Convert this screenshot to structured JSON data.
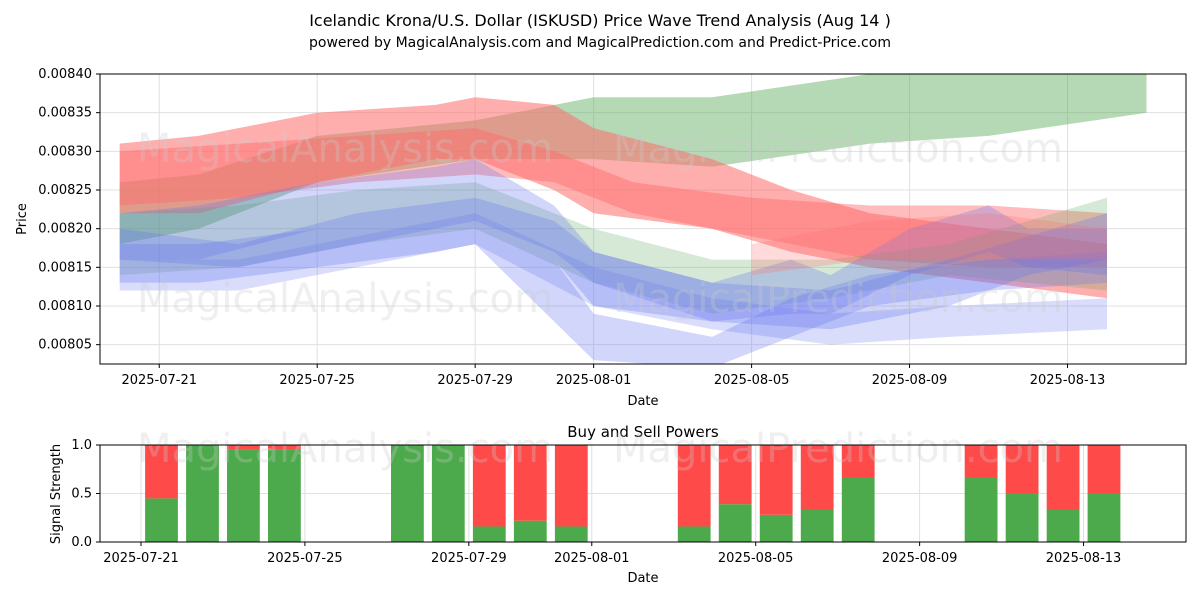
{
  "title": "Icelandic Krona/U.S. Dollar (ISKUSD) Price Wave Trend Analysis (Aug 14 )",
  "subtitle": "powered by MagicalAnalysis.com and MagicalPrediction.com and Predict-Price.com",
  "watermarks": [
    "MagicalAnalysis.com",
    "MagicalPrediction.com"
  ],
  "colors": {
    "buy": "#4caa4c",
    "sell": "#ff4a4a",
    "green_band": "#5aa85a",
    "red_band": "#ff6b6b",
    "blue_band": "#6677ee",
    "grid": "#e0e0e0"
  },
  "chart_data": [
    {
      "type": "area",
      "title": "",
      "xlabel": "Date",
      "ylabel": "Price",
      "xlim": [
        "2025-07-19T12:00",
        "2025-08-16T00:00"
      ],
      "ylim": [
        0.008025,
        0.0084
      ],
      "x_ticks": [
        "2025-07-21",
        "2025-07-25",
        "2025-07-29",
        "2025-08-01",
        "2025-08-05",
        "2025-08-09",
        "2025-08-13"
      ],
      "y_ticks": [
        "0.00805",
        "0.00810",
        "0.00815",
        "0.00820",
        "0.00825",
        "0.00830",
        "0.00835",
        "0.00840"
      ],
      "grid": true,
      "series": [
        {
          "color": "green",
          "opacity": 0.45,
          "x": [
            "2025-07-20",
            "2025-07-22",
            "2025-07-25",
            "2025-07-29",
            "2025-08-01",
            "2025-08-04",
            "2025-08-08",
            "2025-08-11",
            "2025-08-15"
          ],
          "upper": [
            0.00826,
            0.00827,
            0.00832,
            0.00834,
            0.00837,
            0.00837,
            0.0084,
            0.00842,
            0.0084
          ],
          "lower": [
            0.00818,
            0.0082,
            0.00826,
            0.00829,
            0.00829,
            0.00828,
            0.00831,
            0.00832,
            0.00835
          ]
        },
        {
          "color": "red",
          "opacity": 0.55,
          "x": [
            "2025-07-20",
            "2025-07-22",
            "2025-07-25",
            "2025-07-28",
            "2025-07-29",
            "2025-07-31",
            "2025-08-01",
            "2025-08-04",
            "2025-08-06",
            "2025-08-08",
            "2025-08-11",
            "2025-08-14"
          ],
          "upper": [
            0.00831,
            0.00832,
            0.00835,
            0.00836,
            0.00837,
            0.00836,
            0.00833,
            0.00829,
            0.00825,
            0.00822,
            0.0082,
            0.00818
          ],
          "lower": [
            0.00822,
            0.00822,
            0.00826,
            0.00829,
            0.00829,
            0.00825,
            0.00822,
            0.0082,
            0.00817,
            0.00815,
            0.00813,
            0.00811
          ]
        },
        {
          "color": "red",
          "opacity": 0.45,
          "x": [
            "2025-07-20",
            "2025-07-23",
            "2025-07-26",
            "2025-07-29",
            "2025-07-31",
            "2025-08-02",
            "2025-08-05",
            "2025-08-08",
            "2025-08-11",
            "2025-08-14"
          ],
          "upper": [
            0.0083,
            0.00831,
            0.00832,
            0.00833,
            0.0083,
            0.00826,
            0.00824,
            0.00823,
            0.00823,
            0.00822
          ],
          "lower": [
            0.00823,
            0.00824,
            0.00826,
            0.00827,
            0.00826,
            0.00822,
            0.00819,
            0.00816,
            0.00815,
            0.00815
          ]
        },
        {
          "color": "green",
          "opacity": 0.25,
          "x": [
            "2025-07-20",
            "2025-07-23",
            "2025-07-26",
            "2025-07-29",
            "2025-08-01",
            "2025-08-04",
            "2025-08-07",
            "2025-08-10",
            "2025-08-14"
          ],
          "upper": [
            0.00822,
            0.00823,
            0.00825,
            0.00826,
            0.0082,
            0.00816,
            0.00816,
            0.00818,
            0.00824
          ],
          "lower": [
            0.00814,
            0.00815,
            0.00818,
            0.0082,
            0.00813,
            0.00809,
            0.00811,
            0.00814,
            0.00812
          ]
        },
        {
          "color": "blue",
          "opacity": 0.3,
          "x": [
            "2025-07-20",
            "2025-07-22",
            "2025-07-25",
            "2025-07-28",
            "2025-07-29",
            "2025-07-31",
            "2025-08-01",
            "2025-08-04",
            "2025-08-06",
            "2025-08-07",
            "2025-08-09",
            "2025-08-11",
            "2025-08-12",
            "2025-08-14"
          ],
          "upper": [
            0.00822,
            0.00823,
            0.00826,
            0.00828,
            0.00829,
            0.00823,
            0.00817,
            0.00813,
            0.00816,
            0.00814,
            0.0082,
            0.00823,
            0.0082,
            0.0082
          ],
          "lower": [
            0.00816,
            0.00816,
            0.0082,
            0.00822,
            0.00823,
            0.00816,
            0.0081,
            0.00808,
            0.00809,
            0.00809,
            0.00814,
            0.00817,
            0.00815,
            0.00814
          ]
        },
        {
          "color": "blue",
          "opacity": 0.3,
          "x": [
            "2025-07-20",
            "2025-07-22",
            "2025-07-25",
            "2025-07-28",
            "2025-07-29",
            "2025-07-31",
            "2025-08-01",
            "2025-08-04",
            "2025-08-06",
            "2025-08-08",
            "2025-08-11",
            "2025-08-14"
          ],
          "upper": [
            0.00818,
            0.00818,
            0.0082,
            0.00822,
            0.00823,
            0.00816,
            0.00809,
            0.00806,
            0.00811,
            0.00814,
            0.00816,
            0.00817
          ],
          "lower": [
            0.00813,
            0.00813,
            0.00815,
            0.00817,
            0.00818,
            0.00808,
            0.00803,
            0.00802,
            0.00806,
            0.0081,
            0.00812,
            0.00813
          ]
        },
        {
          "color": "blue",
          "opacity": 0.3,
          "x": [
            "2025-07-20",
            "2025-07-23",
            "2025-07-26",
            "2025-07-29",
            "2025-07-31",
            "2025-08-01",
            "2025-08-04",
            "2025-08-07",
            "2025-08-10",
            "2025-08-12",
            "2025-08-14"
          ],
          "upper": [
            0.0082,
            0.00818,
            0.00822,
            0.00824,
            0.00821,
            0.00817,
            0.00813,
            0.00812,
            0.00816,
            0.00819,
            0.00822
          ],
          "lower": [
            0.00816,
            0.00815,
            0.00818,
            0.00821,
            0.00817,
            0.00813,
            0.00808,
            0.00807,
            0.0081,
            0.00814,
            0.00816
          ]
        },
        {
          "color": "blue",
          "opacity": 0.25,
          "x": [
            "2025-07-20",
            "2025-07-23",
            "2025-07-26",
            "2025-07-29",
            "2025-08-01",
            "2025-08-04",
            "2025-08-07",
            "2025-08-10",
            "2025-08-14"
          ],
          "upper": [
            0.00816,
            0.00816,
            0.00819,
            0.00822,
            0.00815,
            0.00811,
            0.00809,
            0.0081,
            0.00811
          ],
          "lower": [
            0.00812,
            0.00812,
            0.00815,
            0.00818,
            0.0081,
            0.00807,
            0.00805,
            0.00806,
            0.00807
          ]
        },
        {
          "color": "red",
          "opacity": 0.25,
          "x": [
            "2025-08-05",
            "2025-08-08",
            "2025-08-11",
            "2025-08-14"
          ],
          "upper": [
            0.00818,
            0.00821,
            0.00822,
            0.0082
          ],
          "lower": [
            0.00814,
            0.00816,
            0.00816,
            0.00816
          ]
        }
      ]
    },
    {
      "type": "bar",
      "title": "Buy and Sell Powers",
      "xlabel": "Date",
      "ylabel": "Signal Strength",
      "xlim": [
        "2025-07-20T00:00",
        "2025-08-15T12:00"
      ],
      "ylim": [
        0,
        1
      ],
      "x_ticks": [
        "2025-07-21",
        "2025-07-25",
        "2025-07-29",
        "2025-08-01",
        "2025-08-05",
        "2025-08-09",
        "2025-08-13"
      ],
      "y_ticks": [
        "0.0",
        "0.5",
        "1.0"
      ],
      "grid": true,
      "dates": [
        "2025-07-21",
        "2025-07-22",
        "2025-07-23",
        "2025-07-24",
        "2025-07-27",
        "2025-07-28",
        "2025-07-29",
        "2025-07-30",
        "2025-07-31",
        "2025-08-03",
        "2025-08-04",
        "2025-08-05",
        "2025-08-06",
        "2025-08-07",
        "2025-08-10",
        "2025-08-11",
        "2025-08-12",
        "2025-08-13"
      ],
      "series": [
        {
          "name": "buy",
          "values": [
            0.45,
            1.0,
            0.95,
            0.95,
            1.0,
            1.0,
            0.16,
            0.22,
            0.16,
            0.16,
            0.39,
            0.28,
            0.33,
            0.67,
            0.67,
            0.5,
            0.33,
            0.5
          ]
        },
        {
          "name": "sell",
          "values": [
            0.55,
            0.0,
            0.05,
            0.05,
            0.0,
            0.0,
            0.84,
            0.78,
            0.84,
            0.84,
            0.61,
            0.72,
            0.67,
            0.33,
            0.33,
            0.5,
            0.67,
            0.5
          ]
        }
      ]
    }
  ]
}
